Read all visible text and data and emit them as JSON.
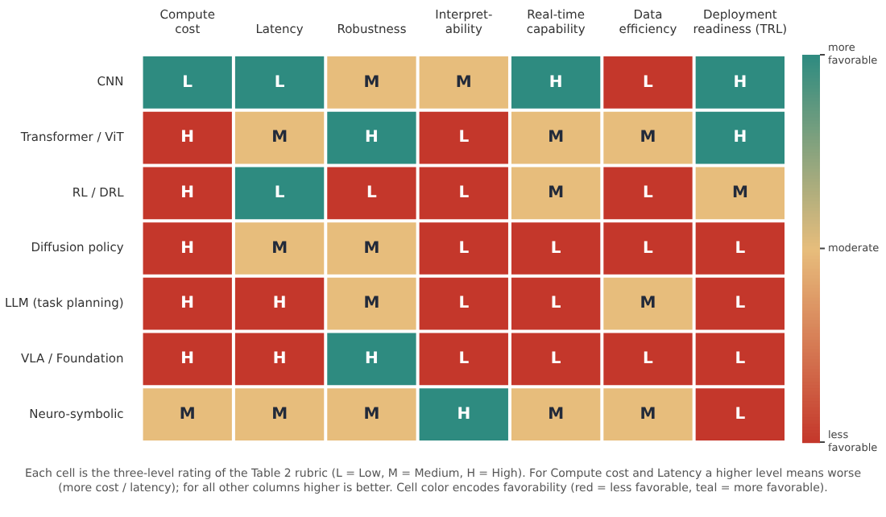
{
  "chart_data": {
    "type": "heatmap",
    "categories": [
      "Compute\ncost",
      "Latency",
      "Robustness",
      "Interpret-\nability",
      "Real-time\ncapability",
      "Data\nefficiency",
      "Deployment\nreadiness (TRL)"
    ],
    "y_categories": [
      "CNN",
      "Transformer / ViT",
      "RL / DRL",
      "Diffusion policy",
      "LLM (task planning)",
      "VLA / Foundation",
      "Neuro-symbolic"
    ],
    "cells": [
      [
        1,
        1,
        0.5,
        0.5,
        1,
        0,
        1
      ],
      [
        0,
        0.5,
        1,
        0,
        0.5,
        0.5,
        1
      ],
      [
        0,
        1,
        0,
        0,
        0.5,
        0,
        0.5
      ],
      [
        0,
        0.5,
        0.5,
        0,
        0,
        0,
        0
      ],
      [
        0,
        0,
        0.5,
        0,
        0,
        0.5,
        0
      ],
      [
        0,
        0,
        1,
        0,
        0,
        0,
        0
      ],
      [
        0.5,
        0.5,
        0.5,
        1,
        0.5,
        0.5,
        0
      ]
    ],
    "cell_labels": [
      [
        "L",
        "L",
        "M",
        "M",
        "H",
        "L",
        "H"
      ],
      [
        "H",
        "M",
        "H",
        "L",
        "M",
        "M",
        "H"
      ],
      [
        "H",
        "L",
        "L",
        "L",
        "M",
        "L",
        "M"
      ],
      [
        "H",
        "M",
        "M",
        "L",
        "L",
        "L",
        "L"
      ],
      [
        "H",
        "H",
        "M",
        "L",
        "L",
        "M",
        "L"
      ],
      [
        "H",
        "H",
        "H",
        "L",
        "L",
        "L",
        "L"
      ],
      [
        "M",
        "M",
        "M",
        "H",
        "M",
        "M",
        "L"
      ]
    ],
    "colors": [
      "#c4372b",
      "#e7bd7c",
      "#2e8b80"
    ],
    "clim": [
      0,
      1
    ],
    "cticks": [
      {
        "value": 0,
        "label": "less\nfavorable"
      },
      {
        "value": 0.5,
        "label": "moderate"
      },
      {
        "value": 1,
        "label": "more\nfavorable"
      }
    ],
    "annotations": [
      "Each cell is the three-level rating of the Table 2 rubric (L = Low, M = Medium, H = High). For Compute cost and Latency a higher level means worse (more cost / latency); for all other columns higher is better. Cell color encodes favorability (red = less favorable, teal = more favorable)."
    ]
  }
}
